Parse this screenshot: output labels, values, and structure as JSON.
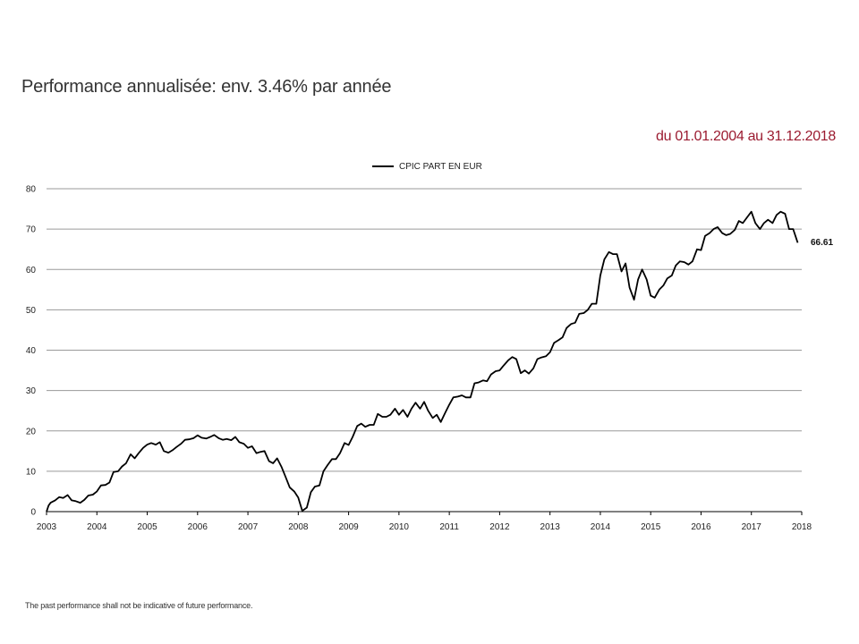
{
  "page": {
    "title": "Performance annualisée: env. 3.46% par année",
    "period": "du 01.01.2004 au 31.12.2018",
    "footnote": "The past performance shall not be indicative of future performance.",
    "colors": {
      "period_text": "#9b1b30",
      "line": "#000000",
      "grid": "#9a9a9a"
    }
  },
  "chart_data": {
    "type": "line",
    "title": "",
    "xlabel": "",
    "ylabel": "",
    "xlim": [
      2003,
      2018
    ],
    "ylim": [
      0,
      80
    ],
    "x_ticks": [
      "2003",
      "2004",
      "2005",
      "2006",
      "2007",
      "2008",
      "2009",
      "2010",
      "2011",
      "2012",
      "2013",
      "2014",
      "2015",
      "2016",
      "2017",
      "2018"
    ],
    "y_ticks": [
      "0",
      "10",
      "20",
      "30",
      "40",
      "50",
      "60",
      "70",
      "80"
    ],
    "grid": "horizontal",
    "legend_position": "top-center",
    "end_label": "66.61",
    "series": [
      {
        "name": "CPIC PART EN EUR",
        "color": "#000000",
        "points": [
          [
            2003.0,
            0
          ],
          [
            2003.04,
            1.5
          ],
          [
            2003.08,
            2.2
          ],
          [
            2003.17,
            2.8
          ],
          [
            2003.25,
            3.6
          ],
          [
            2003.33,
            3.4
          ],
          [
            2003.42,
            4.1
          ],
          [
            2003.5,
            2.8
          ],
          [
            2003.58,
            2.6
          ],
          [
            2003.67,
            2.2
          ],
          [
            2003.75,
            2.9
          ],
          [
            2003.83,
            4.0
          ],
          [
            2003.92,
            4.2
          ],
          [
            2004.0,
            5.0
          ],
          [
            2004.08,
            6.5
          ],
          [
            2004.17,
            6.6
          ],
          [
            2004.25,
            7.2
          ],
          [
            2004.33,
            9.8
          ],
          [
            2004.42,
            10.0
          ],
          [
            2004.5,
            11.2
          ],
          [
            2004.58,
            12.0
          ],
          [
            2004.67,
            14.2
          ],
          [
            2004.75,
            13.2
          ],
          [
            2004.83,
            14.5
          ],
          [
            2004.92,
            15.8
          ],
          [
            2005.0,
            16.6
          ],
          [
            2005.08,
            17.0
          ],
          [
            2005.17,
            16.6
          ],
          [
            2005.25,
            17.2
          ],
          [
            2005.33,
            15.0
          ],
          [
            2005.42,
            14.6
          ],
          [
            2005.5,
            15.2
          ],
          [
            2005.58,
            16.0
          ],
          [
            2005.67,
            16.8
          ],
          [
            2005.75,
            17.8
          ],
          [
            2005.83,
            17.9
          ],
          [
            2005.92,
            18.2
          ],
          [
            2006.0,
            18.9
          ],
          [
            2006.08,
            18.3
          ],
          [
            2006.17,
            18.1
          ],
          [
            2006.25,
            18.5
          ],
          [
            2006.33,
            19.0
          ],
          [
            2006.42,
            18.2
          ],
          [
            2006.5,
            17.8
          ],
          [
            2006.58,
            18.0
          ],
          [
            2006.67,
            17.7
          ],
          [
            2006.75,
            18.5
          ],
          [
            2006.83,
            17.2
          ],
          [
            2006.92,
            16.8
          ],
          [
            2007.0,
            15.8
          ],
          [
            2007.08,
            16.2
          ],
          [
            2007.17,
            14.5
          ],
          [
            2007.25,
            14.8
          ],
          [
            2007.33,
            15.0
          ],
          [
            2007.42,
            12.5
          ],
          [
            2007.5,
            12.0
          ],
          [
            2007.58,
            13.2
          ],
          [
            2007.67,
            11.0
          ],
          [
            2007.75,
            8.5
          ],
          [
            2007.83,
            6.0
          ],
          [
            2007.92,
            5.0
          ],
          [
            2008.0,
            3.5
          ],
          [
            2008.08,
            0.2
          ],
          [
            2008.17,
            1.0
          ],
          [
            2008.25,
            4.8
          ],
          [
            2008.33,
            6.2
          ],
          [
            2008.42,
            6.5
          ],
          [
            2008.5,
            10.0
          ],
          [
            2008.58,
            11.5
          ],
          [
            2008.67,
            13.0
          ],
          [
            2008.75,
            13.0
          ],
          [
            2008.83,
            14.5
          ],
          [
            2008.92,
            17.0
          ],
          [
            2009.0,
            16.5
          ],
          [
            2009.08,
            18.5
          ],
          [
            2009.17,
            21.2
          ],
          [
            2009.25,
            21.8
          ],
          [
            2009.33,
            21.0
          ],
          [
            2009.42,
            21.5
          ],
          [
            2009.5,
            21.5
          ],
          [
            2009.58,
            24.2
          ],
          [
            2009.67,
            23.5
          ],
          [
            2009.75,
            23.5
          ],
          [
            2009.83,
            24.0
          ],
          [
            2009.92,
            25.5
          ],
          [
            2010.0,
            24.0
          ],
          [
            2010.08,
            25.2
          ],
          [
            2010.17,
            23.5
          ],
          [
            2010.25,
            25.5
          ],
          [
            2010.33,
            27.0
          ],
          [
            2010.42,
            25.5
          ],
          [
            2010.5,
            27.2
          ],
          [
            2010.58,
            25.0
          ],
          [
            2010.67,
            23.2
          ],
          [
            2010.75,
            24.0
          ],
          [
            2010.83,
            22.2
          ],
          [
            2010.92,
            24.5
          ],
          [
            2011.0,
            26.5
          ],
          [
            2011.08,
            28.3
          ],
          [
            2011.17,
            28.5
          ],
          [
            2011.25,
            28.8
          ],
          [
            2011.33,
            28.3
          ],
          [
            2011.42,
            28.3
          ],
          [
            2011.5,
            31.8
          ],
          [
            2011.58,
            32.0
          ],
          [
            2011.67,
            32.5
          ],
          [
            2011.75,
            32.3
          ],
          [
            2011.83,
            34.0
          ],
          [
            2011.92,
            34.8
          ],
          [
            2012.0,
            35.0
          ],
          [
            2012.08,
            36.2
          ],
          [
            2012.17,
            37.5
          ],
          [
            2012.25,
            38.3
          ],
          [
            2012.33,
            37.8
          ],
          [
            2012.42,
            34.3
          ],
          [
            2012.5,
            35.0
          ],
          [
            2012.58,
            34.2
          ],
          [
            2012.67,
            35.5
          ],
          [
            2012.75,
            37.8
          ],
          [
            2012.83,
            38.2
          ],
          [
            2012.92,
            38.5
          ],
          [
            2013.0,
            39.5
          ],
          [
            2013.08,
            41.8
          ],
          [
            2013.17,
            42.5
          ],
          [
            2013.25,
            43.2
          ],
          [
            2013.33,
            45.5
          ],
          [
            2013.42,
            46.5
          ],
          [
            2013.5,
            46.8
          ],
          [
            2013.58,
            49.0
          ],
          [
            2013.67,
            49.2
          ],
          [
            2013.75,
            50.0
          ],
          [
            2013.83,
            51.5
          ],
          [
            2013.92,
            51.5
          ],
          [
            2014.0,
            58.5
          ],
          [
            2014.08,
            62.5
          ],
          [
            2014.17,
            64.3
          ],
          [
            2014.25,
            63.8
          ],
          [
            2014.33,
            63.8
          ],
          [
            2014.42,
            59.5
          ],
          [
            2014.5,
            61.5
          ],
          [
            2014.58,
            55.5
          ],
          [
            2014.67,
            52.5
          ],
          [
            2014.75,
            57.5
          ],
          [
            2014.83,
            60.0
          ],
          [
            2014.92,
            57.5
          ],
          [
            2015.0,
            53.5
          ],
          [
            2015.08,
            53.0
          ],
          [
            2015.17,
            55.0
          ],
          [
            2015.25,
            56.0
          ],
          [
            2015.33,
            57.8
          ],
          [
            2015.42,
            58.5
          ],
          [
            2015.5,
            61.0
          ],
          [
            2015.58,
            62.0
          ],
          [
            2015.67,
            61.8
          ],
          [
            2015.75,
            61.2
          ],
          [
            2015.83,
            62.0
          ],
          [
            2015.92,
            65.0
          ],
          [
            2016.0,
            64.8
          ],
          [
            2016.08,
            68.3
          ],
          [
            2016.17,
            69.0
          ],
          [
            2016.25,
            70.0
          ],
          [
            2016.33,
            70.5
          ],
          [
            2016.42,
            69.0
          ],
          [
            2016.5,
            68.5
          ],
          [
            2016.58,
            68.8
          ],
          [
            2016.67,
            69.8
          ],
          [
            2016.75,
            72.0
          ],
          [
            2016.83,
            71.5
          ],
          [
            2016.92,
            73.0
          ],
          [
            2017.0,
            74.3
          ],
          [
            2017.08,
            71.5
          ],
          [
            2017.17,
            70.0
          ],
          [
            2017.25,
            71.5
          ],
          [
            2017.33,
            72.3
          ],
          [
            2017.42,
            71.5
          ],
          [
            2017.5,
            73.5
          ],
          [
            2017.58,
            74.3
          ],
          [
            2017.67,
            73.8
          ],
          [
            2017.75,
            70.0
          ],
          [
            2017.83,
            70.0
          ],
          [
            2017.92,
            66.61
          ]
        ]
      }
    ]
  }
}
